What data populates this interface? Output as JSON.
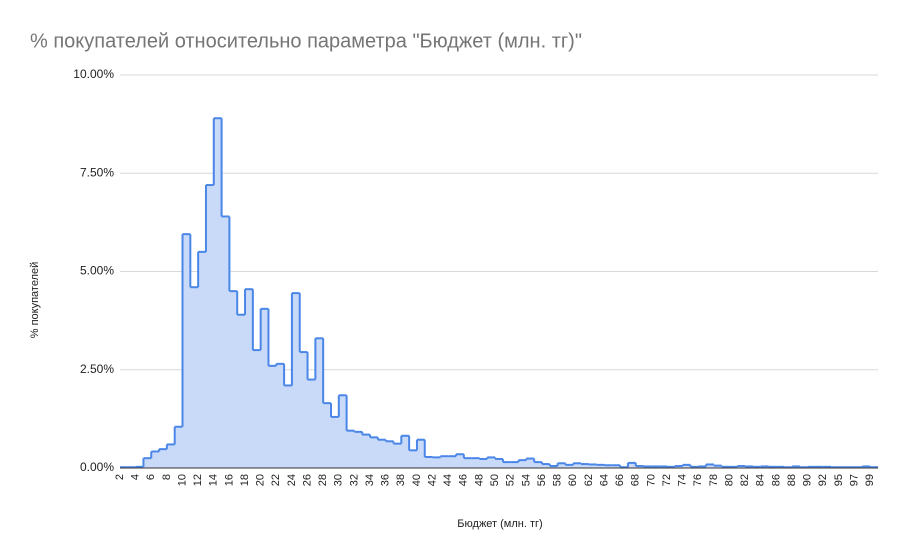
{
  "chart_data": {
    "type": "stepped-area",
    "title": "% покупателей относительно параметра \"Бюджет (млн. тг)\"",
    "x_label": "Бюджет (млн. тг)",
    "y_label": "% покупателей",
    "categories": [
      "2",
      null,
      "4",
      null,
      "6",
      null,
      "8",
      null,
      "10",
      null,
      "12",
      null,
      "14",
      null,
      "16",
      null,
      "18",
      null,
      "20",
      null,
      "22",
      null,
      "24",
      null,
      "26",
      null,
      "28",
      null,
      "30",
      null,
      "32",
      null,
      "34",
      null,
      "36",
      null,
      "38",
      null,
      "40",
      null,
      "42",
      null,
      "44",
      null,
      "46",
      null,
      "48",
      null,
      "50",
      null,
      "52",
      null,
      "54",
      null,
      "56",
      null,
      "58",
      null,
      "60",
      null,
      "62",
      null,
      "64",
      null,
      "66",
      null,
      "68",
      null,
      "70",
      null,
      "72",
      null,
      "74",
      null,
      "76",
      null,
      "78",
      null,
      "80",
      null,
      "82",
      null,
      "84",
      null,
      "86",
      null,
      "88",
      null,
      "90",
      null,
      "92",
      null,
      "95",
      null,
      "97",
      null,
      "99"
    ],
    "values": [
      0.02,
      0.02,
      0.03,
      0.25,
      0.42,
      0.48,
      0.6,
      1.05,
      5.95,
      4.6,
      5.5,
      7.2,
      8.9,
      6.4,
      4.5,
      3.9,
      4.55,
      3.0,
      4.05,
      2.6,
      2.65,
      2.1,
      4.45,
      2.95,
      2.25,
      3.3,
      1.65,
      1.3,
      1.85,
      0.95,
      0.92,
      0.85,
      0.78,
      0.72,
      0.68,
      0.62,
      0.82,
      0.45,
      0.72,
      0.28,
      0.27,
      0.3,
      0.3,
      0.35,
      0.25,
      0.25,
      0.23,
      0.27,
      0.23,
      0.15,
      0.15,
      0.2,
      0.24,
      0.15,
      0.1,
      0.05,
      0.12,
      0.08,
      0.12,
      0.1,
      0.09,
      0.08,
      0.07,
      0.07,
      0.02,
      0.13,
      0.05,
      0.04,
      0.04,
      0.04,
      0.03,
      0.05,
      0.08,
      0.03,
      0.04,
      0.09,
      0.06,
      0.03,
      0.03,
      0.05,
      0.04,
      0.03,
      0.04,
      0.03,
      0.03,
      0.02,
      0.04,
      0.02,
      0.03,
      0.03,
      0.03,
      0.02,
      0.02,
      0.02,
      0.02,
      0.04,
      0.02
    ],
    "color": "#4a86e8",
    "fill_color": "#c9daf8",
    "ylim": [
      0,
      10
    ],
    "yticks": [
      {
        "value": 0,
        "label": "0.00%"
      },
      {
        "value": 2.5,
        "label": "2.50%"
      },
      {
        "value": 5,
        "label": "5.00%"
      },
      {
        "value": 7.5,
        "label": "7.50%"
      },
      {
        "value": 10,
        "label": "10.00%"
      }
    ],
    "grid": true
  }
}
